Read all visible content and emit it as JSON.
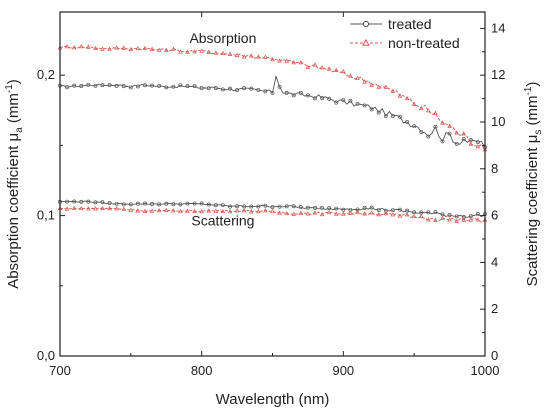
{
  "chart_data": {
    "type": "line",
    "x_label": "Wavelength (nm)",
    "y_label_left": {
      "prefix": "Absorption coefficient μ",
      "sub": "a",
      "unit": " (mm",
      "sup": "-1",
      "close": ")"
    },
    "y_label_right": {
      "prefix": "Scattering coefficient μ",
      "sub": "s",
      "unit": " (mm",
      "sup": "-1",
      "close": ")"
    },
    "xlim": [
      700,
      1000
    ],
    "ylim_left": [
      0.0,
      0.245
    ],
    "ylim_right": [
      0,
      14.7
    ],
    "x_ticks": [
      {
        "v": 700,
        "label": "700"
      },
      {
        "v": 800,
        "label": "800"
      },
      {
        "v": 900,
        "label": "900"
      },
      {
        "v": 1000,
        "label": "1000"
      }
    ],
    "y_ticks_left": [
      {
        "v": 0.0,
        "label": "0,0"
      },
      {
        "v": 0.1,
        "label": "0,1"
      },
      {
        "v": 0.2,
        "label": "0,2"
      }
    ],
    "y_ticks_right": [
      {
        "v": 0,
        "label": "0"
      },
      {
        "v": 2,
        "label": "2"
      },
      {
        "v": 4,
        "label": "4"
      },
      {
        "v": 6,
        "label": "6"
      },
      {
        "v": 8,
        "label": "8"
      },
      {
        "v": 10,
        "label": "10"
      },
      {
        "v": 12,
        "label": "12"
      },
      {
        "v": 14,
        "label": "14"
      }
    ],
    "annotations": [
      {
        "text": "Absorption",
        "x": 815,
        "y": 0.223
      },
      {
        "text": "Scattering",
        "x": 815,
        "y": 0.093
      }
    ],
    "legend_position": "top-right",
    "series": [
      {
        "name": "treated",
        "axis": "left",
        "color": "#555555",
        "marker": "circle",
        "x": [
          700,
          710,
          720,
          730,
          740,
          750,
          760,
          770,
          780,
          790,
          800,
          810,
          820,
          830,
          840,
          850,
          853,
          856,
          860,
          870,
          880,
          890,
          900,
          910,
          920,
          930,
          940,
          950,
          955,
          960,
          965,
          970,
          975,
          980,
          985,
          990,
          995,
          1000
        ],
        "y": [
          0.192,
          0.192,
          0.193,
          0.193,
          0.193,
          0.192,
          0.193,
          0.192,
          0.192,
          0.192,
          0.191,
          0.191,
          0.19,
          0.19,
          0.189,
          0.188,
          0.202,
          0.188,
          0.187,
          0.186,
          0.185,
          0.183,
          0.181,
          0.179,
          0.177,
          0.173,
          0.169,
          0.165,
          0.162,
          0.158,
          0.162,
          0.155,
          0.158,
          0.152,
          0.155,
          0.151,
          0.153,
          0.15
        ]
      },
      {
        "name": "non-treated",
        "axis": "left",
        "color": "#d9534f",
        "marker": "triangle",
        "x": [
          700,
          710,
          720,
          730,
          740,
          750,
          760,
          770,
          780,
          790,
          800,
          810,
          820,
          830,
          840,
          850,
          860,
          870,
          880,
          890,
          900,
          910,
          920,
          930,
          940,
          950,
          960,
          970,
          980,
          990,
          1000
        ],
        "y": [
          0.22,
          0.22,
          0.22,
          0.219,
          0.219,
          0.219,
          0.219,
          0.218,
          0.218,
          0.217,
          0.217,
          0.216,
          0.215,
          0.214,
          0.213,
          0.212,
          0.21,
          0.208,
          0.206,
          0.204,
          0.201,
          0.198,
          0.195,
          0.191,
          0.186,
          0.18,
          0.175,
          0.167,
          0.16,
          0.153,
          0.15
        ]
      },
      {
        "name": "treated",
        "axis": "right",
        "color": "#555555",
        "marker": "circle",
        "x": [
          700,
          720,
          740,
          760,
          780,
          800,
          820,
          840,
          860,
          880,
          900,
          920,
          940,
          960,
          980,
          1000
        ],
        "y": [
          6.6,
          6.6,
          6.5,
          6.5,
          6.5,
          6.5,
          6.4,
          6.4,
          6.4,
          6.3,
          6.3,
          6.3,
          6.2,
          6.1,
          6.0,
          6.0
        ]
      },
      {
        "name": "non-treated",
        "axis": "right",
        "color": "#d9534f",
        "marker": "triangle",
        "x": [
          700,
          720,
          740,
          760,
          780,
          800,
          820,
          840,
          860,
          880,
          900,
          920,
          940,
          960,
          980,
          1000
        ],
        "y": [
          6.3,
          6.3,
          6.3,
          6.2,
          6.2,
          6.2,
          6.2,
          6.2,
          6.1,
          6.1,
          6.1,
          6.1,
          6.0,
          5.9,
          5.8,
          5.8
        ]
      }
    ],
    "legend": [
      {
        "label": "treated",
        "color": "#555555",
        "marker": "circle"
      },
      {
        "label": "non-treated",
        "color": "#d9534f",
        "marker": "triangle",
        "dashed": true
      }
    ]
  }
}
